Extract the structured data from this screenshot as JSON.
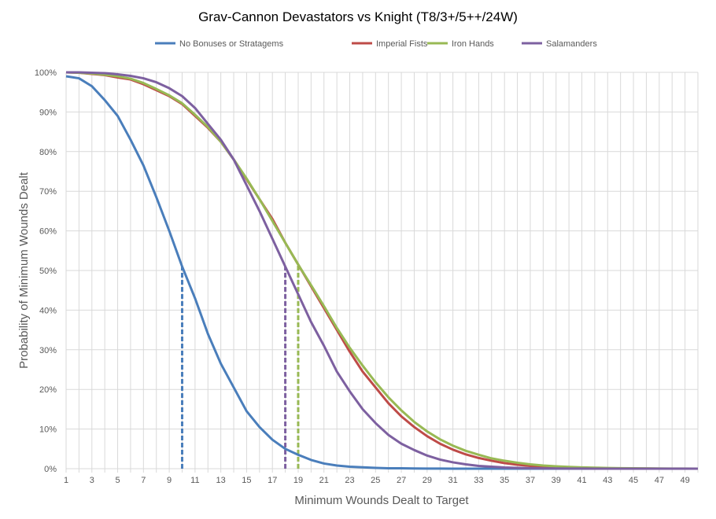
{
  "chart_data": {
    "type": "line",
    "title": "Grav-Cannon Devastators vs Knight (T8/3+/5++/24W)",
    "xlabel": "Minimum Wounds Dealt  to Target",
    "ylabel": "Probability of Minimum Wounds Dealt",
    "xlim": [
      1,
      50
    ],
    "ylim": [
      0,
      100
    ],
    "x_tick_labels": [
      "1",
      "3",
      "5",
      "7",
      "9",
      "11",
      "13",
      "15",
      "17",
      "19",
      "21",
      "23",
      "25",
      "27",
      "29",
      "31",
      "33",
      "35",
      "37",
      "39",
      "41",
      "43",
      "45",
      "47",
      "49"
    ],
    "y_tick_labels": [
      "0%",
      "10%",
      "20%",
      "30%",
      "40%",
      "50%",
      "60%",
      "70%",
      "80%",
      "90%",
      "100%"
    ],
    "grid": true,
    "legend_position": "top",
    "x": [
      1,
      2,
      3,
      4,
      5,
      6,
      7,
      8,
      9,
      10,
      11,
      12,
      13,
      14,
      15,
      16,
      17,
      18,
      19,
      20,
      21,
      22,
      23,
      24,
      25,
      26,
      27,
      28,
      29,
      30,
      31,
      32,
      33,
      34,
      35,
      36,
      37,
      38,
      39,
      40,
      41,
      42,
      43,
      44,
      45,
      46,
      47,
      48,
      49,
      50
    ],
    "series": [
      {
        "name": "No Bonuses or Stratagems",
        "color": "#4a7ebb",
        "values": [
          99,
          98.5,
          96.5,
          93,
          89,
          83,
          76.5,
          68.5,
          60,
          51,
          43,
          34,
          26.5,
          20.5,
          14.5,
          10.5,
          7.3,
          5,
          3.5,
          2.2,
          1.3,
          0.8,
          0.5,
          0.35,
          0.2,
          0.1,
          0.1,
          0.05,
          0.03,
          0.02,
          0.01,
          0,
          0,
          0,
          0,
          0,
          0,
          0,
          0,
          0,
          0,
          0,
          0,
          0,
          0,
          0,
          0,
          0,
          0,
          0
        ],
        "marker_x": 10,
        "marker_y": 51
      },
      {
        "name": "Imperial Fists",
        "color": "#be4b48",
        "values": [
          100,
          99.9,
          99.6,
          99.3,
          98.7,
          98.2,
          97,
          95.5,
          94,
          92,
          89,
          86,
          82.5,
          78,
          73,
          68,
          63,
          57,
          51.5,
          46,
          40.5,
          35,
          29.5,
          24.5,
          20.5,
          16.5,
          13.2,
          10.5,
          8.2,
          6.3,
          4.8,
          3.6,
          2.7,
          2,
          1.4,
          1,
          0.7,
          0.5,
          0.35,
          0.25,
          0.17,
          0.12,
          0.08,
          0.05,
          0.03,
          0.02,
          0.01,
          0,
          0,
          0
        ]
      },
      {
        "name": "Iron Hands",
        "color": "#98b954",
        "values": [
          100,
          99.9,
          99.7,
          99.4,
          99,
          98.4,
          97.3,
          95.8,
          94.2,
          92.2,
          89.3,
          86.2,
          82.5,
          78,
          73.2,
          68,
          62.5,
          57,
          51.5,
          46.3,
          41,
          35.5,
          30.5,
          26,
          21.8,
          18,
          14.7,
          11.8,
          9.4,
          7.4,
          5.8,
          4.5,
          3.5,
          2.6,
          2,
          1.5,
          1.1,
          0.8,
          0.6,
          0.45,
          0.33,
          0.25,
          0.18,
          0.13,
          0.1,
          0.07,
          0.05,
          0.03,
          0.02,
          0.01
        ],
        "marker_x": 19,
        "marker_y": 51.5
      },
      {
        "name": "Salamanders",
        "color": "#7d60a0",
        "values": [
          100,
          100,
          99.9,
          99.8,
          99.5,
          99.1,
          98.5,
          97.5,
          96,
          94,
          91,
          87,
          83,
          78,
          71.5,
          65,
          58,
          51,
          44,
          37,
          31,
          24.5,
          19.5,
          15,
          11.5,
          8.5,
          6.3,
          4.7,
          3.3,
          2.3,
          1.6,
          1.1,
          0.7,
          0.5,
          0.3,
          0.2,
          0.13,
          0.08,
          0.05,
          0.03,
          0.02,
          0.01,
          0,
          0,
          0,
          0,
          0,
          0,
          0,
          0
        ],
        "marker_x": 18,
        "marker_y": 51
      }
    ]
  }
}
